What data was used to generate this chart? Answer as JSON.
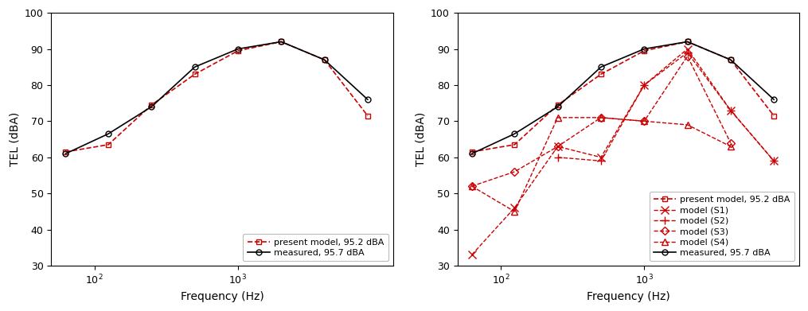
{
  "freqs_7": [
    63,
    125,
    250,
    500,
    1000,
    2000,
    4000
  ],
  "present_model": [
    61.5,
    63.5,
    74.5,
    83.0,
    89.5,
    92.0,
    87.0
  ],
  "measured": [
    61.0,
    66.5,
    74.0,
    85.0,
    90.0,
    92.0,
    87.0
  ],
  "freqs_last": 8000,
  "present_model_last": 71.5,
  "measured_last": 76.0,
  "model_S1_freqs": [
    63,
    125,
    250,
    500,
    1000,
    2000,
    4000,
    8000
  ],
  "model_S1": [
    33,
    46,
    63,
    60,
    80,
    90,
    73,
    59
  ],
  "model_S2_freqs": [
    250,
    500,
    1000,
    2000,
    4000,
    8000
  ],
  "model_S2": [
    60,
    59,
    80,
    89,
    73,
    59
  ],
  "model_S3_freqs": [
    63,
    125,
    250,
    500,
    1000,
    2000,
    4000
  ],
  "model_S3": [
    52,
    56,
    63,
    71,
    70,
    88,
    64
  ],
  "model_S4_freqs": [
    63,
    125,
    250,
    500,
    1000,
    2000,
    4000
  ],
  "model_S4": [
    52,
    45,
    71,
    71,
    70,
    69,
    63
  ],
  "red_color": "#cc0000",
  "black_color": "#000000",
  "ylabel": "TEL (dBA)",
  "xlabel": "Frequency (Hz)",
  "ylim": [
    30,
    100
  ],
  "yticks": [
    30,
    40,
    50,
    60,
    70,
    80,
    90,
    100
  ],
  "xtick_locs": [
    100,
    1000
  ],
  "xtick_labels": [
    "10$^2$",
    "10$^3$"
  ],
  "xlim": [
    50,
    12000
  ],
  "legend1_labels": [
    "present model, 95.2 dBA",
    "measured, 95.7 dBA"
  ],
  "legend2_labels": [
    "present model, 95.2 dBA",
    "model (S1)",
    "model (S2)",
    "model (S3)",
    "model (S4)",
    "measured, 95.7 dBA"
  ]
}
